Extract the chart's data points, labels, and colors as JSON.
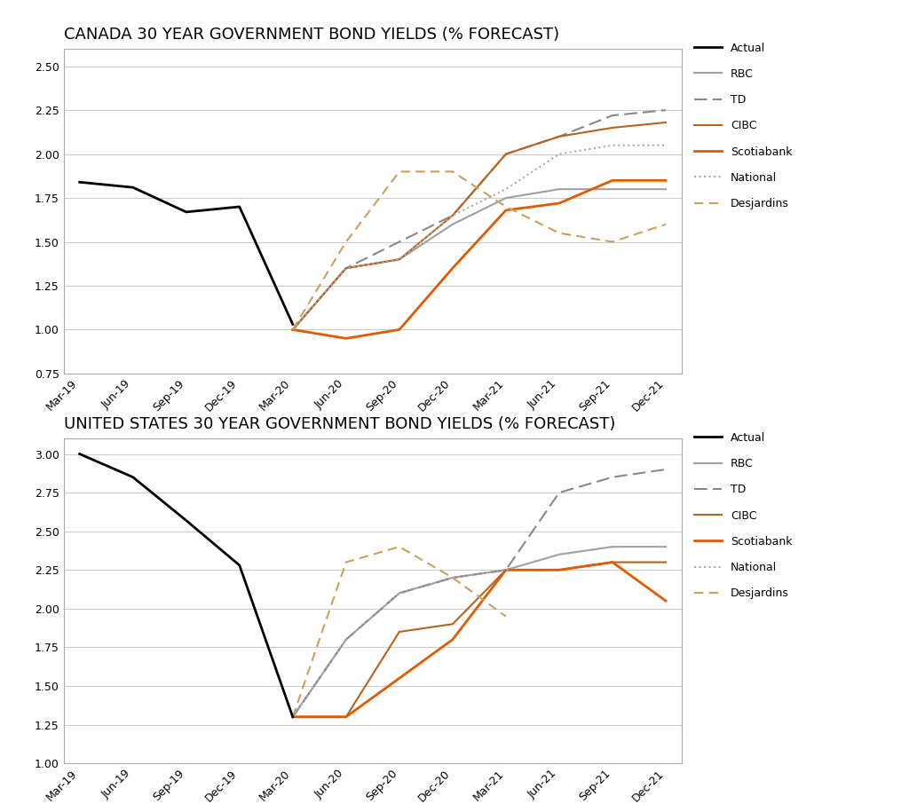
{
  "title1": "CANADA 30 YEAR GOVERNMENT BOND YIELDS (% FORECAST)",
  "title2": "UNITED STATES 30 YEAR GOVERNMENT BOND YIELDS (% FORECAST)",
  "x_labels": [
    "Mar-19",
    "Jun-19",
    "Sep-19",
    "Dec-19",
    "Mar-20",
    "Jun-20",
    "Sep-20",
    "Dec-20",
    "Mar-21",
    "Jun-21",
    "Sep-21",
    "Dec-21"
  ],
  "canada": {
    "actual_x": [
      0,
      1,
      2,
      3,
      4
    ],
    "actual_y": [
      1.84,
      1.81,
      1.67,
      1.7,
      1.03
    ],
    "rbc_x": [
      4,
      5,
      6,
      7,
      8,
      9,
      10,
      11
    ],
    "rbc_y": [
      1.0,
      1.35,
      1.4,
      1.6,
      1.75,
      1.8,
      1.8,
      1.8
    ],
    "td_x": [
      4,
      5,
      6,
      7,
      8,
      9,
      10,
      11
    ],
    "td_y": [
      1.0,
      1.35,
      1.5,
      1.65,
      2.0,
      2.1,
      2.22,
      2.25
    ],
    "cibc_x": [
      4,
      5,
      6,
      7,
      8,
      9,
      10,
      11
    ],
    "cibc_y": [
      1.0,
      1.35,
      1.4,
      1.65,
      2.0,
      2.1,
      2.15,
      2.18
    ],
    "scotia_x": [
      4,
      5,
      6,
      7,
      8,
      9,
      10,
      11
    ],
    "scotia_y": [
      1.0,
      0.95,
      1.0,
      1.35,
      1.68,
      1.72,
      1.85,
      1.85
    ],
    "national_x": [
      4,
      5,
      6,
      7,
      8,
      9,
      10,
      11
    ],
    "national_y": [
      1.0,
      1.35,
      1.4,
      1.65,
      1.8,
      2.0,
      2.05,
      2.05
    ],
    "desj_x": [
      4,
      5,
      6,
      7,
      8,
      9,
      10,
      11
    ],
    "desj_y": [
      1.0,
      1.5,
      1.9,
      1.9,
      1.7,
      1.55,
      1.5,
      1.6
    ],
    "ylim": [
      0.75,
      2.6
    ],
    "yticks": [
      0.75,
      1.0,
      1.25,
      1.5,
      1.75,
      2.0,
      2.25,
      2.5
    ]
  },
  "us": {
    "actual_x": [
      0,
      1,
      2,
      3,
      4
    ],
    "actual_y": [
      3.0,
      2.85,
      2.57,
      2.28,
      1.3
    ],
    "rbc_x": [
      4,
      5,
      6,
      7,
      8,
      9,
      10,
      11
    ],
    "rbc_y": [
      1.3,
      1.8,
      2.1,
      2.2,
      2.25,
      2.35,
      2.4,
      2.4
    ],
    "td_x": [
      4,
      5,
      6,
      7,
      8,
      9,
      10,
      11
    ],
    "td_y": [
      1.3,
      1.8,
      2.1,
      2.2,
      2.25,
      2.75,
      2.85,
      2.9
    ],
    "cibc_x": [
      4,
      5,
      6,
      7,
      8,
      9,
      10,
      11
    ],
    "cibc_y": [
      1.3,
      1.3,
      1.85,
      1.9,
      2.25,
      2.25,
      2.3,
      2.3
    ],
    "scotia_x": [
      4,
      5,
      6,
      7,
      8,
      9,
      10,
      11
    ],
    "scotia_y": [
      1.3,
      1.3,
      1.55,
      1.8,
      2.25,
      2.25,
      2.3,
      2.05
    ],
    "national_x": [
      4,
      5,
      6,
      7,
      8,
      9,
      10,
      11
    ],
    "national_y": [
      1.3,
      1.8,
      2.1,
      2.2,
      2.25,
      2.35,
      2.4,
      2.4
    ],
    "desj_x": [
      4,
      5,
      6,
      7,
      8
    ],
    "desj_y": [
      1.3,
      2.3,
      2.4,
      2.2,
      1.95
    ],
    "ylim": [
      1.0,
      3.1
    ],
    "yticks": [
      1.0,
      1.25,
      1.5,
      1.75,
      2.0,
      2.25,
      2.5,
      2.75,
      3.0
    ]
  },
  "colors": {
    "actual": "#000000",
    "rbc": "#A0A0A0",
    "td": "#888888",
    "cibc": "#B8621A",
    "scotiabank": "#E05A00",
    "national": "#AAAAAA",
    "desjardins": "#C8A060"
  },
  "bg_color": "#FFFFFF",
  "grid_color": "#CCCCCC",
  "title_fontsize": 13,
  "tick_fontsize": 9,
  "legend_fontsize": 9
}
